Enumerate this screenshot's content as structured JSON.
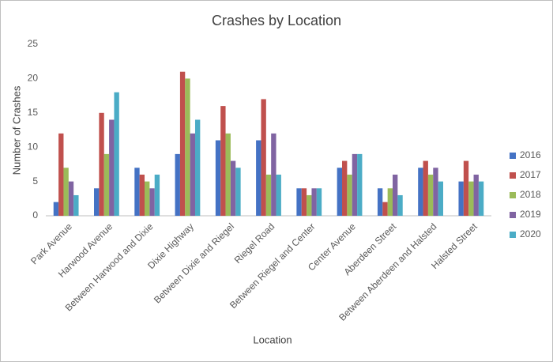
{
  "chart_data": {
    "type": "bar",
    "title": "Crashes by Location",
    "x_label": "Location",
    "y_label": "Number of Crashes",
    "categories": [
      "Park Avenue",
      "Harwood Avenue",
      "Between Harwood and Dixie",
      "Dixie Highway",
      "Between Dixie and Riegel",
      "Riegel Road",
      "Between Riegel and Center",
      "Center Avenue",
      "Aberdeen Street",
      "Between Aberdeen and Halsted",
      "Halsted Street"
    ],
    "series": [
      {
        "name": "2016",
        "color": "#4472c4",
        "values": [
          2,
          4,
          7,
          9,
          11,
          11,
          4,
          7,
          4,
          7,
          5
        ]
      },
      {
        "name": "2017",
        "color": "#c0504d",
        "values": [
          12,
          15,
          6,
          21,
          16,
          17,
          4,
          8,
          2,
          8,
          8
        ]
      },
      {
        "name": "2018",
        "color": "#9bbb59",
        "values": [
          7,
          9,
          5,
          20,
          12,
          6,
          3,
          6,
          4,
          6,
          5
        ]
      },
      {
        "name": "2019",
        "color": "#8064a2",
        "values": [
          5,
          14,
          4,
          12,
          8,
          12,
          4,
          9,
          6,
          7,
          6
        ]
      },
      {
        "name": "2020",
        "color": "#4bacc6",
        "values": [
          3,
          18,
          6,
          14,
          7,
          6,
          4,
          9,
          3,
          5,
          5
        ]
      }
    ],
    "ylim": [
      0,
      25
    ],
    "yticks": [
      0,
      5,
      10,
      15,
      20,
      25
    ],
    "grid": false,
    "legend": "right"
  }
}
